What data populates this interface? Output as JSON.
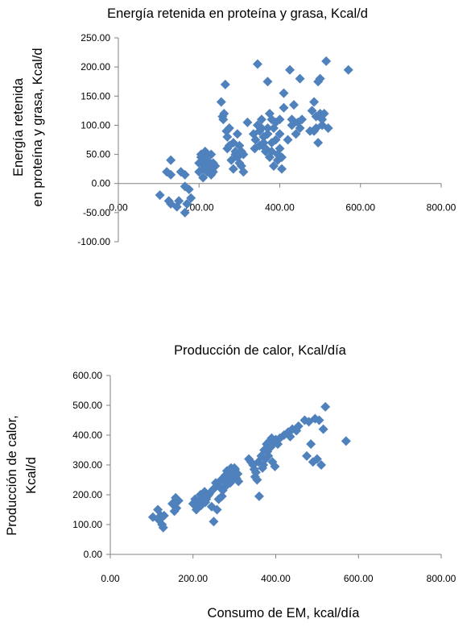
{
  "colors": {
    "marker": "#4F81BD",
    "axis": "#808080"
  },
  "chart_data": [
    {
      "type": "scatter",
      "title": "Energía retenida  en proteína y grasa, Kcal/d",
      "ylabel": "Energía retenida en proteína y grasa, Kcal/d",
      "xlabel": "",
      "xlim": [
        0,
        800
      ],
      "ylim": [
        -100,
        250
      ],
      "x_ticks": [
        "0.00",
        "200.00",
        "400.00",
        "600.00",
        "800.00"
      ],
      "y_ticks": [
        "250.00",
        "200.00",
        "150.00",
        "100.00",
        "50.00",
        "0.00",
        "-50.00",
        "-100.00"
      ],
      "grid": false,
      "legend": "none",
      "marker": "diamond",
      "x": [
        103,
        120,
        125,
        130,
        130,
        130,
        145,
        150,
        155,
        165,
        165,
        165,
        170,
        175,
        180,
        200,
        200,
        205,
        205,
        210,
        210,
        210,
        215,
        215,
        215,
        220,
        220,
        225,
        225,
        230,
        230,
        235,
        235,
        240,
        255,
        258,
        260,
        262,
        265,
        268,
        270,
        270,
        275,
        275,
        280,
        285,
        285,
        290,
        290,
        295,
        295,
        300,
        300,
        305,
        305,
        310,
        310,
        320,
        335,
        338,
        340,
        345,
        345,
        350,
        350,
        355,
        355,
        360,
        360,
        365,
        365,
        370,
        370,
        370,
        375,
        375,
        380,
        380,
        380,
        385,
        385,
        390,
        390,
        395,
        395,
        400,
        400,
        400,
        405,
        405,
        410,
        410,
        420,
        425,
        430,
        430,
        435,
        440,
        445,
        450,
        450,
        455,
        475,
        480,
        485,
        485,
        490,
        490,
        495,
        495,
        500,
        500,
        505,
        505,
        510,
        515,
        520,
        570
      ],
      "y": [
        -20,
        20,
        -30,
        -35,
        40,
        15,
        -40,
        -30,
        20,
        -50,
        -5,
        15,
        -35,
        -10,
        -25,
        20,
        35,
        45,
        50,
        40,
        25,
        10,
        55,
        45,
        30,
        20,
        40,
        35,
        25,
        15,
        50,
        35,
        20,
        30,
        140,
        115,
        110,
        120,
        170,
        90,
        60,
        80,
        95,
        65,
        40,
        25,
        70,
        55,
        50,
        45,
        85,
        35,
        65,
        30,
        55,
        50,
        20,
        105,
        85,
        60,
        75,
        205,
        100,
        65,
        90,
        110,
        95,
        80,
        70,
        60,
        55,
        175,
        85,
        95,
        45,
        120,
        110,
        70,
        55,
        30,
        95,
        105,
        75,
        40,
        50,
        110,
        85,
        60,
        45,
        25,
        130,
        155,
        75,
        195,
        110,
        100,
        135,
        85,
        105,
        95,
        180,
        110,
        90,
        125,
        90,
        140,
        115,
        95,
        175,
        70,
        180,
        120,
        110,
        100,
        120,
        210,
        95,
        195
      ]
    },
    {
      "type": "scatter",
      "title": "Producción de calor, Kcal/día",
      "ylabel": "Producción de calor, Kcal/d",
      "xlabel": "Consumo de EM, kcal/día",
      "xlim": [
        0,
        800
      ],
      "ylim": [
        0,
        600
      ],
      "x_ticks": [
        "0.00",
        "200.00",
        "400.00",
        "600.00",
        "800.00"
      ],
      "y_ticks": [
        "600.00",
        "500.00",
        "400.00",
        "300.00",
        "200.00",
        "100.00",
        "0.00"
      ],
      "grid": false,
      "legend": "none",
      "marker": "diamond",
      "x": [
        103,
        115,
        118,
        122,
        125,
        128,
        130,
        150,
        155,
        158,
        160,
        165,
        200,
        205,
        208,
        210,
        212,
        215,
        218,
        220,
        225,
        228,
        230,
        232,
        235,
        238,
        240,
        245,
        250,
        250,
        255,
        258,
        262,
        265,
        268,
        270,
        272,
        275,
        278,
        280,
        282,
        285,
        288,
        290,
        292,
        295,
        298,
        300,
        302,
        305,
        308,
        310,
        335,
        340,
        345,
        348,
        350,
        352,
        355,
        358,
        360,
        365,
        368,
        370,
        372,
        375,
        378,
        380,
        382,
        385,
        388,
        390,
        392,
        395,
        398,
        400,
        405,
        410,
        420,
        430,
        435,
        440,
        450,
        455,
        470,
        475,
        480,
        485,
        490,
        495,
        500,
        505,
        510,
        515,
        520,
        570
      ],
      "y": [
        125,
        150,
        115,
        130,
        100,
        90,
        130,
        170,
        145,
        190,
        155,
        180,
        170,
        185,
        150,
        160,
        175,
        180,
        200,
        165,
        190,
        210,
        175,
        185,
        195,
        200,
        205,
        160,
        110,
        220,
        240,
        150,
        185,
        225,
        250,
        195,
        215,
        245,
        265,
        230,
        280,
        250,
        265,
        240,
        290,
        275,
        260,
        290,
        285,
        255,
        270,
        245,
        320,
        310,
        300,
        285,
        260,
        275,
        250,
        310,
        195,
        330,
        290,
        300,
        350,
        320,
        370,
        345,
        330,
        380,
        360,
        390,
        310,
        375,
        295,
        385,
        370,
        390,
        400,
        410,
        395,
        420,
        415,
        430,
        450,
        330,
        445,
        370,
        310,
        455,
        320,
        450,
        300,
        420,
        495,
        380
      ]
    }
  ]
}
